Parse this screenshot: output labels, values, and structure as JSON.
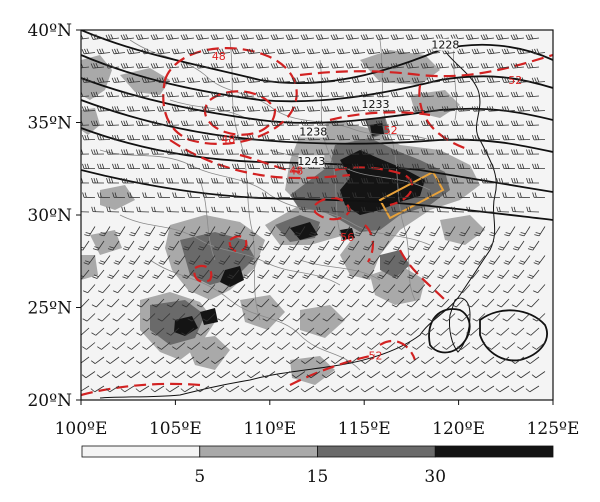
{
  "figure": {
    "lon_range": [
      100,
      125
    ],
    "lat_range": [
      20,
      40
    ],
    "x_ticks": [
      {
        "value": 100,
        "label": "100ºE"
      },
      {
        "value": 105,
        "label": "105ºE"
      },
      {
        "value": 110,
        "label": "110ºE"
      },
      {
        "value": 115,
        "label": "115ºE"
      },
      {
        "value": 120,
        "label": "120ºE"
      },
      {
        "value": 125,
        "label": "125ºE"
      }
    ],
    "y_ticks": [
      {
        "value": 20,
        "label": "20ºN"
      },
      {
        "value": 25,
        "label": "25ºN"
      },
      {
        "value": 30,
        "label": "30ºN"
      },
      {
        "value": 35,
        "label": "35ºN"
      },
      {
        "value": 40,
        "label": "40ºN"
      }
    ],
    "geopotential_contour_labels": [
      {
        "text": "1228",
        "lon": 119.3,
        "lat": 39.1
      },
      {
        "text": "1233",
        "lon": 115.6,
        "lat": 35.9
      },
      {
        "text": "1238",
        "lon": 112.3,
        "lat": 34.4
      },
      {
        "text": "1243",
        "lon": 112.2,
        "lat": 32.8
      }
    ],
    "temperature_contour_labels": [
      {
        "text": "48",
        "lon": 107.3,
        "lat": 38.6
      },
      {
        "text": "48",
        "lon": 107.8,
        "lat": 34.1
      },
      {
        "text": "48",
        "lon": 111.4,
        "lat": 32.4
      },
      {
        "text": "52",
        "lon": 123.0,
        "lat": 37.3
      },
      {
        "text": "52",
        "lon": 116.4,
        "lat": 34.6
      },
      {
        "text": "56",
        "lon": 114.1,
        "lat": 28.8
      },
      {
        "text": "52",
        "lon": 115.6,
        "lat": 22.4
      }
    ],
    "colorbar": {
      "colors": [
        "#f4f4f4",
        "#a9a9a9",
        "#6a6a6a",
        "#141414"
      ],
      "tick_labels": [
        {
          "text": "5",
          "boundary_index": 1
        },
        {
          "text": "15",
          "boundary_index": 2
        },
        {
          "text": "30",
          "boundary_index": 3
        }
      ]
    },
    "colors": {
      "geopotential": "#111111",
      "temperature": "#d22222",
      "highlight_box": "#e8a23a",
      "wind_barb": "#333333",
      "coastline": "#111111",
      "borders": "#8a8a8a",
      "shading_light": "#f4f4f4",
      "shading_medium": "#a9a9a9",
      "shading_dark": "#6a6a6a",
      "shading_black": "#141414"
    }
  }
}
